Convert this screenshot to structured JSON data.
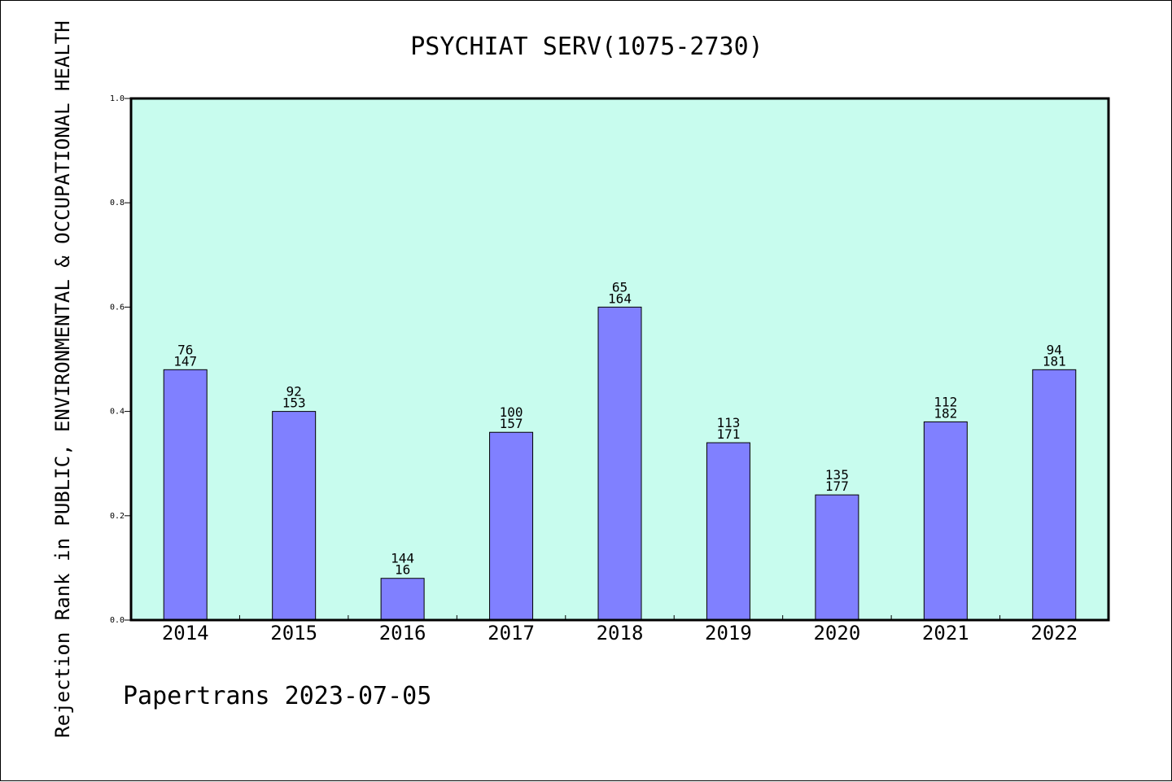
{
  "chart_data": {
    "type": "bar",
    "title": "PSYCHIAT SERV(1075-2730)",
    "xlabel": "",
    "ylabel": "Rejection Rank in PUBLIC, ENVIRONMENTAL & OCCUPATIONAL HEALTH",
    "ylim": [
      0,
      1.0
    ],
    "yticks": [
      "0.0",
      "0.2",
      "0.4",
      "0.6",
      "0.8",
      "1.0"
    ],
    "categories": [
      "2014",
      "2015",
      "2016",
      "2017",
      "2018",
      "2019",
      "2020",
      "2021",
      "2022"
    ],
    "values": [
      0.48,
      0.4,
      0.08,
      0.36,
      0.6,
      0.34,
      0.24,
      0.38,
      0.48
    ],
    "label_top": [
      "76",
      "92",
      "144",
      "100",
      "65",
      "113",
      "135",
      "112",
      "94"
    ],
    "label_bottom": [
      "147",
      "153",
      "16",
      "157",
      "164",
      "171",
      "177",
      "182",
      "181"
    ],
    "grid": false,
    "legend": false
  },
  "footer": "Papertrans 2023-07-05",
  "colors": {
    "plot_background": "#c8fcee",
    "bar_fill": "#8080ff",
    "bar_stroke": "#000000"
  }
}
